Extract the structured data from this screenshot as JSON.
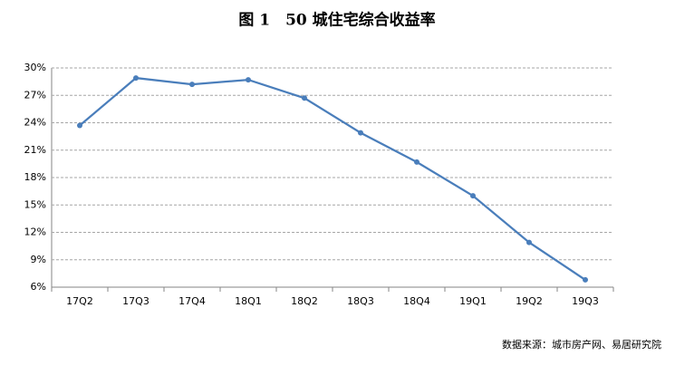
{
  "chart_data": {
    "type": "line",
    "title": "图 1　50 城住宅综合收益率",
    "categories": [
      "17Q2",
      "17Q3",
      "17Q4",
      "18Q1",
      "18Q2",
      "18Q3",
      "18Q4",
      "19Q1",
      "19Q2",
      "19Q3"
    ],
    "values": [
      23.7,
      28.9,
      28.2,
      28.7,
      26.7,
      22.9,
      19.7,
      16.0,
      10.9,
      6.8
    ],
    "color": "#4a7ebb",
    "ylim": [
      6,
      30
    ],
    "yticks": [
      {
        "value": 6,
        "label": "6%"
      },
      {
        "value": 9,
        "label": "9%"
      },
      {
        "value": 12,
        "label": "12%"
      },
      {
        "value": 15,
        "label": "15%"
      },
      {
        "value": 18,
        "label": "18%"
      },
      {
        "value": 21,
        "label": "21%"
      },
      {
        "value": 24,
        "label": "24%"
      },
      {
        "value": 27,
        "label": "27%"
      },
      {
        "value": 30,
        "label": "30%"
      }
    ],
    "grid": true,
    "source": "数据来源：城市房产网、易居研究院"
  }
}
